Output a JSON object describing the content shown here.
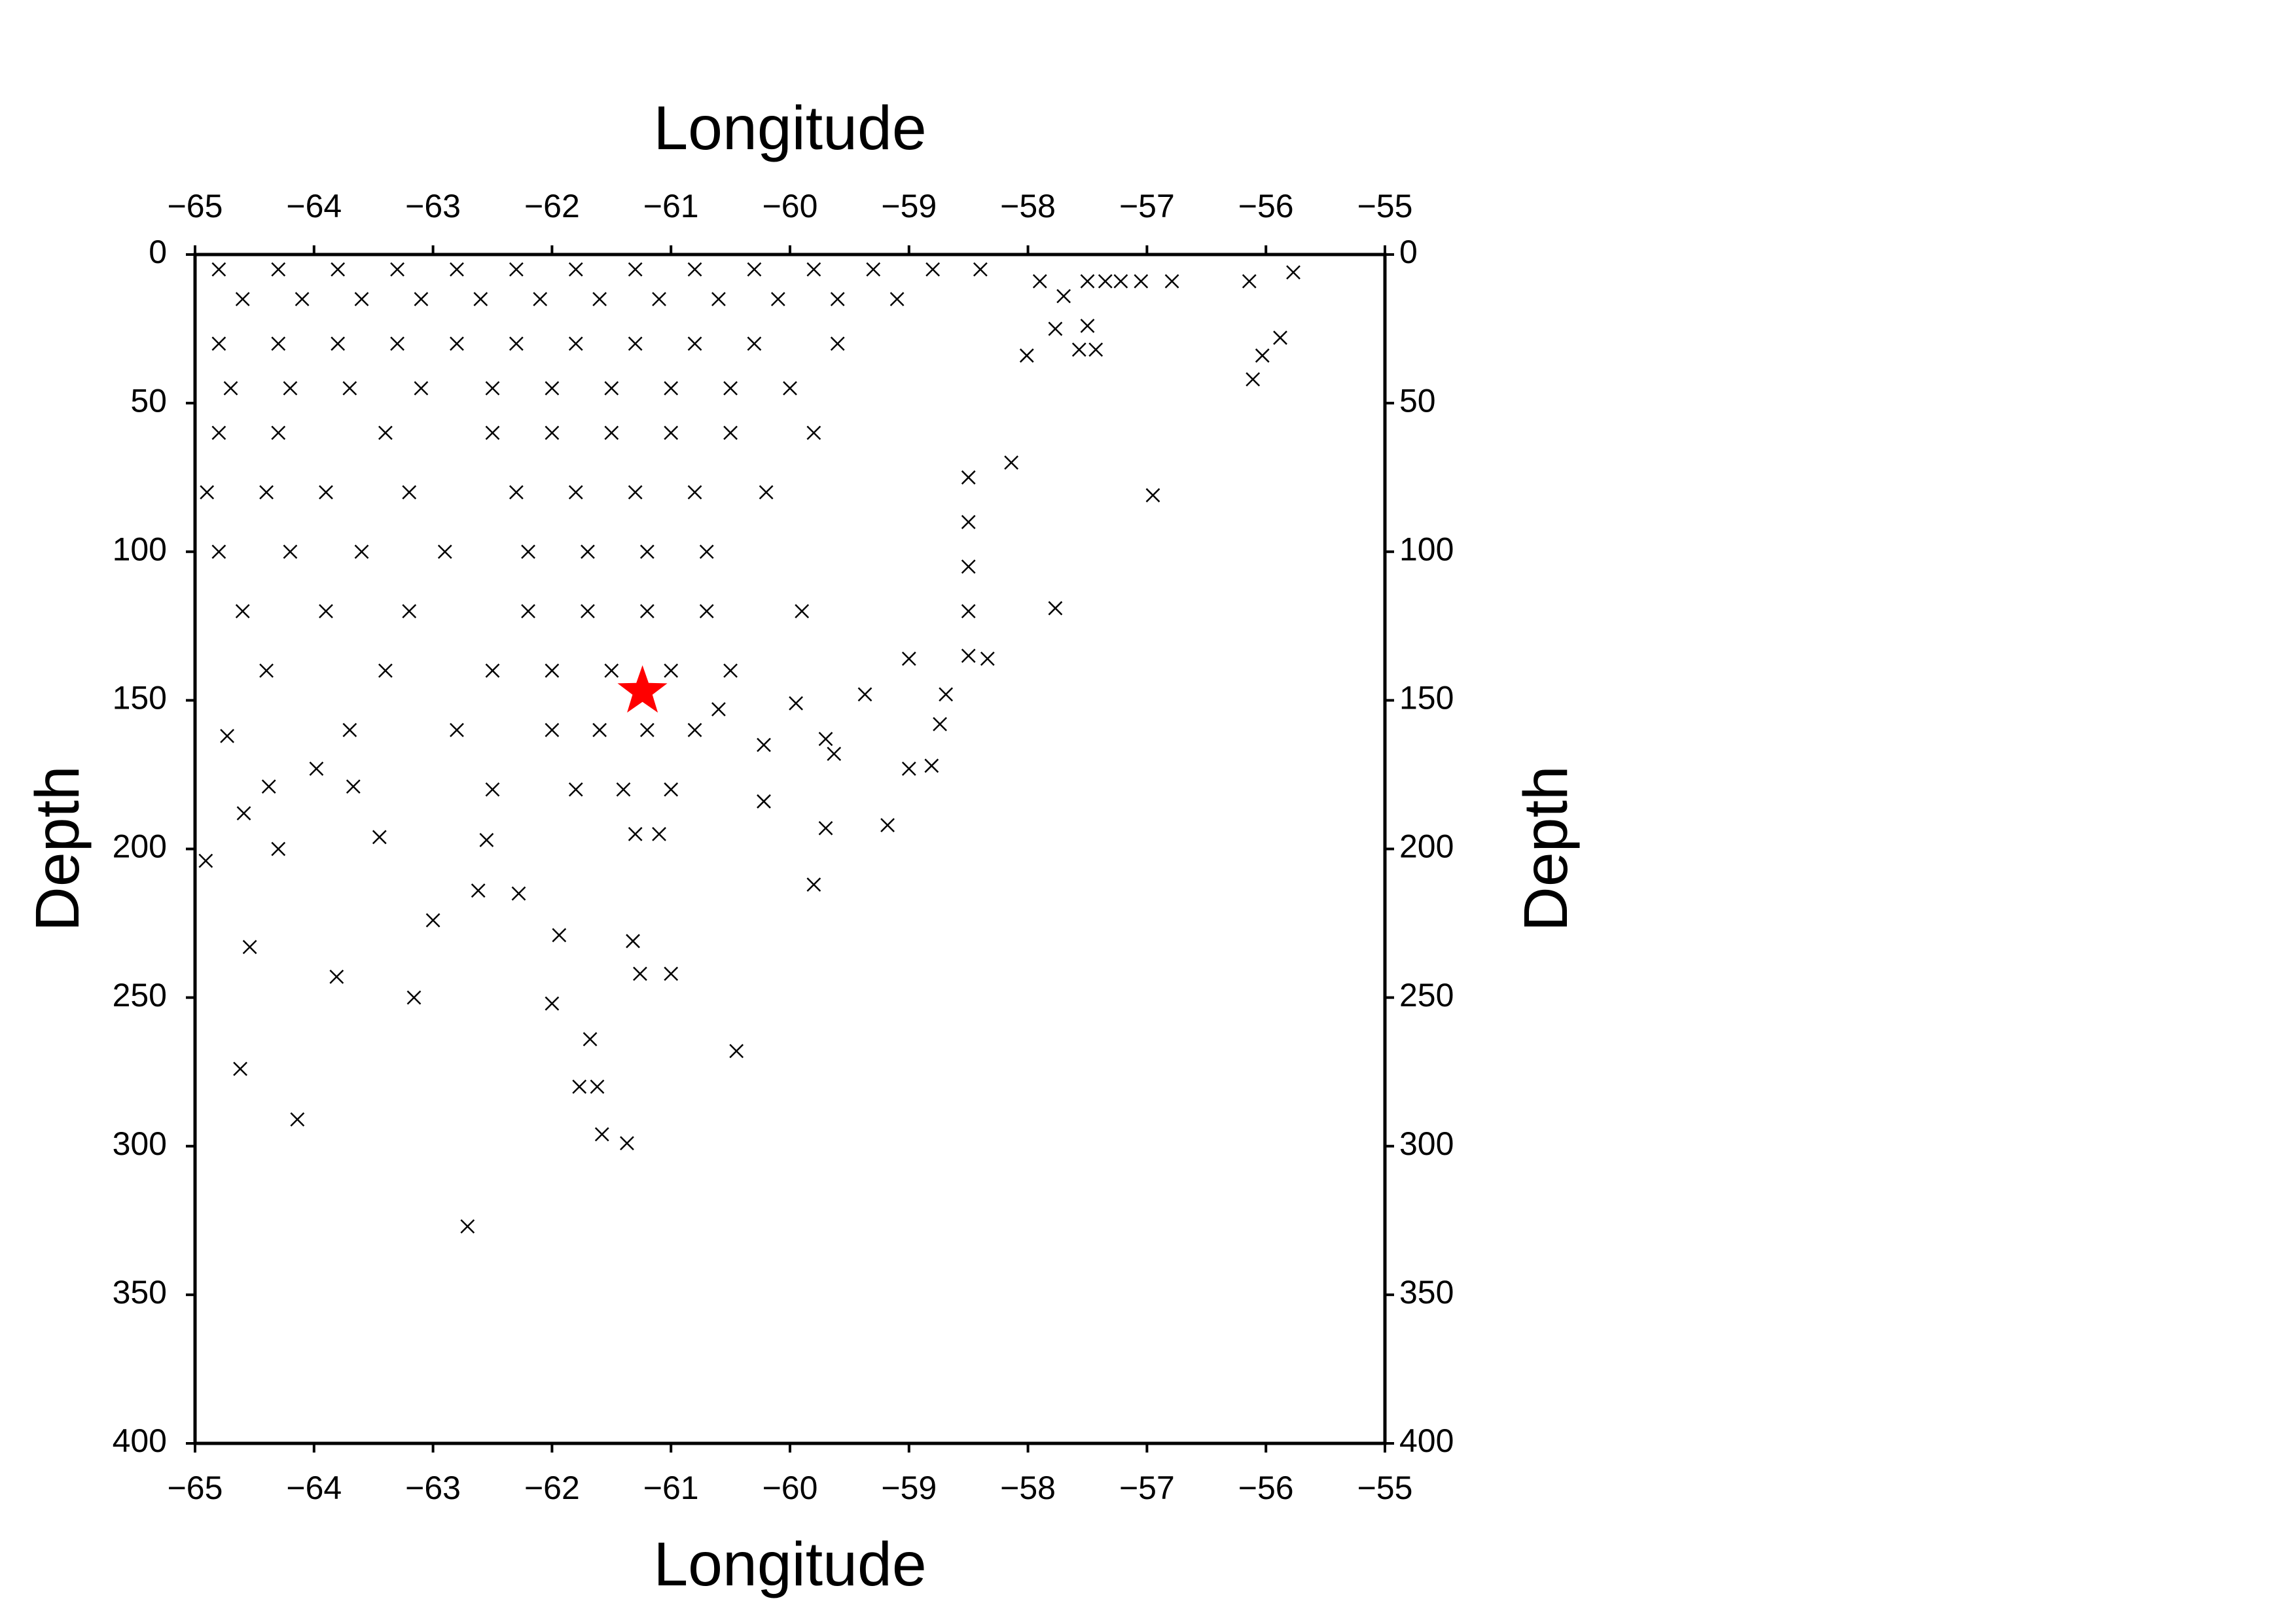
{
  "chart_data": {
    "type": "scatter",
    "xlabel": "Longitude",
    "ylabel": "Depth",
    "xlim": [
      -65,
      -55
    ],
    "xticks": [
      {
        "value": -65,
        "label": "−65"
      },
      {
        "value": -64,
        "label": "−64"
      },
      {
        "value": -63,
        "label": "−63"
      },
      {
        "value": -62,
        "label": "−62"
      },
      {
        "value": -61,
        "label": "−61"
      },
      {
        "value": -60,
        "label": "−60"
      },
      {
        "value": -59,
        "label": "−59"
      },
      {
        "value": -58,
        "label": "−58"
      },
      {
        "value": -57,
        "label": "−57"
      },
      {
        "value": -56,
        "label": "−56"
      },
      {
        "value": -55,
        "label": "−55"
      }
    ],
    "ylim": [
      0,
      400
    ],
    "y_inverted": true,
    "yticks": [
      0,
      50,
      100,
      150,
      200,
      250,
      300,
      350,
      400
    ],
    "series": [
      {
        "marker": "x",
        "color": "#000000",
        "x": [
          -64.91,
          -64.62,
          -64.54,
          -64.14,
          -64.3,
          -63.81,
          -63.16,
          -62.71,
          -63.0,
          -62.0,
          -61.94,
          -61.77,
          -61.62,
          -61.68,
          -61.58,
          -61.37,
          -61.32,
          -61.26,
          -61.0,
          -60.45,
          -59.8,
          -59.18,
          -59.7,
          -56.95,
          -57.77,
          -56.11,
          -56.03,
          -55.88,
          -55.77,
          -56.14,
          -56.79,
          -57.05,
          -57.22,
          -57.35,
          -57.5,
          -57.43,
          -57.57,
          -57.5,
          -57.77,
          -57.7,
          -57.9,
          -58.01,
          -58.14,
          -58.34,
          -58.69,
          -58.74,
          -58.81,
          -59.0,
          -59.37,
          -59.0,
          -59.7,
          -59.63,
          -59.95,
          -60.22,
          -60.22,
          -60.6,
          -62.28,
          -62.62,
          -62.55,
          -63.45,
          -63.67,
          -64.38,
          -63.98,
          -64.59,
          -64.73,
          -64.8,
          -64.3,
          -63.8,
          -63.3,
          -62.8,
          -62.3,
          -61.8,
          -61.3,
          -60.8,
          -60.3,
          -59.8,
          -59.3,
          -58.8,
          -58.4,
          -64.6,
          -64.1,
          -63.6,
          -63.1,
          -62.6,
          -62.1,
          -61.6,
          -61.1,
          -60.6,
          -60.1,
          -59.6,
          -59.1,
          -64.8,
          -64.3,
          -63.8,
          -63.3,
          -62.8,
          -62.3,
          -61.8,
          -61.3,
          -60.8,
          -60.3,
          -59.6,
          -64.7,
          -64.2,
          -63.7,
          -63.1,
          -62.5,
          -62.0,
          -61.5,
          -61.0,
          -60.5,
          -60.0,
          -64.8,
          -64.3,
          -63.4,
          -62.5,
          -62.0,
          -61.5,
          -61.0,
          -60.5,
          -59.8,
          -64.9,
          -64.4,
          -63.9,
          -63.2,
          -62.3,
          -61.8,
          -61.3,
          -60.8,
          -60.2,
          -64.8,
          -64.2,
          -63.6,
          -62.9,
          -62.2,
          -61.7,
          -61.2,
          -60.7,
          -64.6,
          -63.9,
          -63.2,
          -62.2,
          -61.7,
          -61.2,
          -60.7,
          -59.9,
          -64.4,
          -63.4,
          -62.5,
          -62.0,
          -61.5,
          -61.0,
          -60.5,
          -63.7,
          -62.8,
          -62.0,
          -61.6,
          -61.2,
          -60.8,
          -62.5,
          -61.8,
          -61.4,
          -61.0,
          -61.3,
          -61.1,
          -58.5,
          -58.5,
          -58.5,
          -58.5,
          -58.5
        ],
        "values": [
          204,
          274,
          233,
          291,
          200,
          243,
          250,
          327,
          224,
          252,
          229,
          280,
          280,
          264,
          296,
          299,
          231,
          242,
          242,
          268,
          212,
          192,
          193,
          81,
          119,
          42,
          34,
          28,
          6,
          9,
          9,
          9,
          9,
          9,
          9,
          32,
          32,
          24,
          25,
          14,
          9,
          34,
          70,
          136,
          148,
          158,
          172,
          173,
          148,
          136,
          163,
          168,
          151,
          165,
          184,
          153,
          215,
          214,
          197,
          196,
          179,
          179,
          173,
          188,
          162,
          5,
          5,
          5,
          5,
          5,
          5,
          5,
          5,
          5,
          5,
          5,
          5,
          5,
          5,
          15,
          15,
          15,
          15,
          15,
          15,
          15,
          15,
          15,
          15,
          15,
          15,
          30,
          30,
          30,
          30,
          30,
          30,
          30,
          30,
          30,
          30,
          30,
          45,
          45,
          45,
          45,
          45,
          45,
          45,
          45,
          45,
          45,
          60,
          60,
          60,
          60,
          60,
          60,
          60,
          60,
          60,
          80,
          80,
          80,
          80,
          80,
          80,
          80,
          80,
          80,
          100,
          100,
          100,
          100,
          100,
          100,
          100,
          100,
          120,
          120,
          120,
          120,
          120,
          120,
          120,
          120,
          140,
          140,
          140,
          140,
          140,
          140,
          140,
          160,
          160,
          160,
          160,
          160,
          160,
          180,
          180,
          180,
          180,
          195,
          195,
          75,
          90,
          105,
          120,
          135
        ]
      },
      {
        "marker": "star",
        "color": "#ff0000",
        "x": [
          -61.24
        ],
        "values": [
          147
        ]
      }
    ]
  }
}
